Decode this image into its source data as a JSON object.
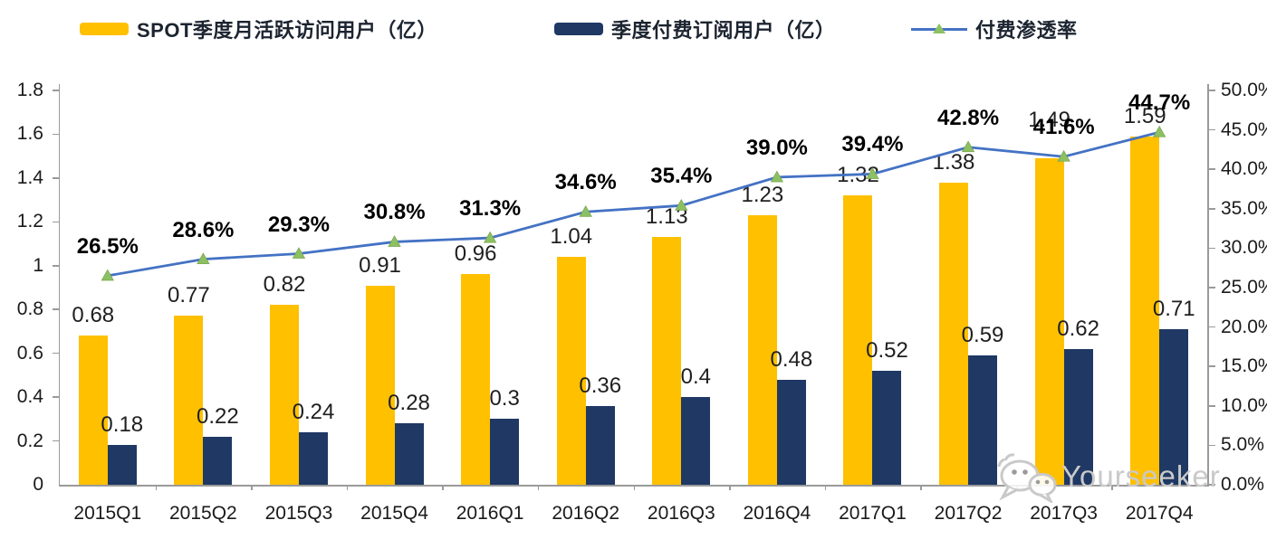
{
  "page": {
    "background": "#ffffff"
  },
  "legend": {
    "items": [
      {
        "label": "SPOT季度月活跃访问用户（亿）",
        "swatch_color": "#FFC000",
        "type": "bar-swatch"
      },
      {
        "label": "季度付费订阅用户（亿）",
        "swatch_color": "#1F3864",
        "type": "bar-swatch"
      },
      {
        "label": "付费渗透率",
        "line_color": "#4472C4",
        "marker_color": "#8DC063",
        "type": "line-swatch"
      }
    ]
  },
  "watermark": {
    "text": "Yourseeker",
    "icon": "wechat-chat-bubbles-icon",
    "color": "#c9c9c9"
  },
  "chart_data": {
    "type": "bar",
    "subtype": "grouped-bars-with-line-overlay-dual-axis",
    "title": "",
    "categories": [
      "2015Q1",
      "2015Q2",
      "2015Q3",
      "2015Q4",
      "2016Q1",
      "2016Q2",
      "2016Q3",
      "2016Q4",
      "2017Q1",
      "2017Q2",
      "2017Q3",
      "2017Q4"
    ],
    "series": [
      {
        "name": "SPOT季度月活跃访问用户（亿）",
        "type": "bar",
        "axis": "left",
        "color": "#FFC000",
        "values": [
          0.68,
          0.77,
          0.82,
          0.91,
          0.96,
          1.04,
          1.13,
          1.23,
          1.32,
          1.38,
          1.49,
          1.59
        ],
        "labels": [
          "0.68",
          "0.77",
          "0.82",
          "0.91",
          "0.96",
          "1.04",
          "1.13",
          "1.23",
          "1.32",
          "1.38",
          "1.49",
          "1.59"
        ]
      },
      {
        "name": "季度付费订阅用户（亿）",
        "type": "bar",
        "axis": "left",
        "color": "#1F3864",
        "values": [
          0.18,
          0.22,
          0.24,
          0.28,
          0.3,
          0.36,
          0.4,
          0.48,
          0.52,
          0.59,
          0.62,
          0.71
        ],
        "labels": [
          "0.18",
          "0.22",
          "0.24",
          "0.28",
          "0.3",
          "0.36",
          "0.4",
          "0.48",
          "0.52",
          "0.59",
          "0.62",
          "0.71"
        ]
      },
      {
        "name": "付费渗透率",
        "type": "line",
        "axis": "right",
        "color": "#4472C4",
        "marker": "triangle",
        "marker_color": "#8DC063",
        "values": [
          26.5,
          28.6,
          29.3,
          30.8,
          31.3,
          34.6,
          35.4,
          39.0,
          39.4,
          42.8,
          41.6,
          44.7
        ],
        "labels": [
          "26.5%",
          "28.6%",
          "29.3%",
          "30.8%",
          "31.3%",
          "34.6%",
          "35.4%",
          "39.0%",
          "39.4%",
          "42.8%",
          "41.6%",
          "44.7%"
        ]
      }
    ],
    "left_axis": {
      "min": 0,
      "max": 1.8,
      "step": 0.2,
      "tick_labels": [
        "0",
        "0.2",
        "0.4",
        "0.6",
        "0.8",
        "1",
        "1.2",
        "1.4",
        "1.6",
        "1.8"
      ]
    },
    "right_axis": {
      "min": 0,
      "max": 50,
      "step": 5,
      "tick_labels": [
        "0.0%",
        "5.0%",
        "10.0%",
        "15.0%",
        "20.0%",
        "25.0%",
        "30.0%",
        "35.0%",
        "40.0%",
        "45.0%",
        "50.0%"
      ]
    },
    "grid": false,
    "legend_position": "top"
  }
}
